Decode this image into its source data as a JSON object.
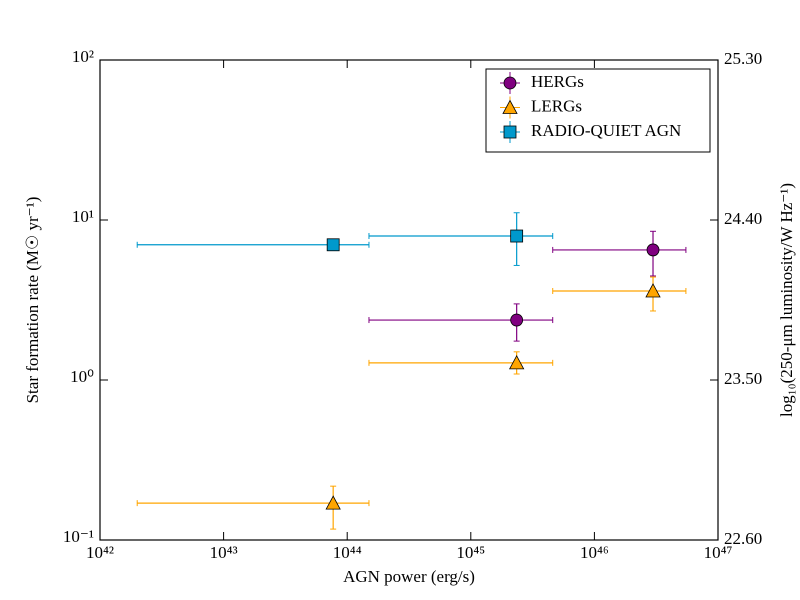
{
  "chart_data": {
    "type": "scatter",
    "xlabel": "AGN power (erg/s)",
    "ylabel": "Star formation rate (M☉ yr⁻¹)",
    "y2label": "log₁₀(250-μm luminosity/W Hz⁻¹)",
    "xscale": "log",
    "yscale": "log",
    "xlim": [
      1e+42,
      1e+47
    ],
    "ylim": [
      0.1,
      100
    ],
    "y2lim": [
      22.6,
      25.3
    ],
    "xticks": [
      {
        "value": 1e+42,
        "label": "10⁴²"
      },
      {
        "value": 1e+43,
        "label": "10⁴³"
      },
      {
        "value": 1e+44,
        "label": "10⁴⁴"
      },
      {
        "value": 1e+45,
        "label": "10⁴⁵"
      },
      {
        "value": 1e+46,
        "label": "10⁴⁶"
      },
      {
        "value": 1e+47,
        "label": "10⁴⁷"
      }
    ],
    "yticks": [
      {
        "value": 0.1,
        "label": "10⁻¹"
      },
      {
        "value": 1,
        "label": "10⁰"
      },
      {
        "value": 10,
        "label": "10¹"
      },
      {
        "value": 100,
        "label": "10²"
      }
    ],
    "y2ticks": [
      {
        "value": 22.6,
        "label": "22.60"
      },
      {
        "value": 23.5,
        "label": "23.50"
      },
      {
        "value": 24.4,
        "label": "24.40"
      },
      {
        "value": 25.3,
        "label": "25.30"
      }
    ],
    "legend": "upper right",
    "series": [
      {
        "name": "HERGs",
        "color": "#800080",
        "marker": "circle",
        "x": [
          2.35e+45,
          2.98e+46
        ],
        "values": [
          2.37,
          6.5
        ],
        "x_low": [
          1.5e+44,
          4.6e+45
        ],
        "x_high": [
          4.6e+45,
          5.5e+46
        ],
        "y_low": [
          1.75,
          4.47
        ],
        "y_high": [
          2.99,
          8.5
        ]
      },
      {
        "name": "LERGs",
        "color": "#ffa500",
        "marker": "triangle",
        "x": [
          7.7e+43,
          2.35e+45,
          2.98e+46
        ],
        "values": [
          0.17,
          1.28,
          3.6
        ],
        "x_low": [
          2e+42,
          1.5e+44,
          4.6e+45
        ],
        "x_high": [
          1.5e+44,
          4.6e+45,
          5.5e+46
        ],
        "y_low": [
          0.117,
          1.09,
          2.7
        ],
        "y_high": [
          0.217,
          1.5,
          4.4
        ]
      },
      {
        "name": "RADIO-QUIET AGN",
        "color": "#0099cc",
        "marker": "square",
        "x": [
          7.7e+43,
          2.35e+45
        ],
        "values": [
          7.0,
          7.94
        ],
        "x_low": [
          2e+42,
          1.5e+44
        ],
        "x_high": [
          1.5e+44,
          4.6e+45
        ],
        "y_low": [
          null,
          5.2
        ],
        "y_high": [
          null,
          11.1
        ]
      }
    ]
  }
}
